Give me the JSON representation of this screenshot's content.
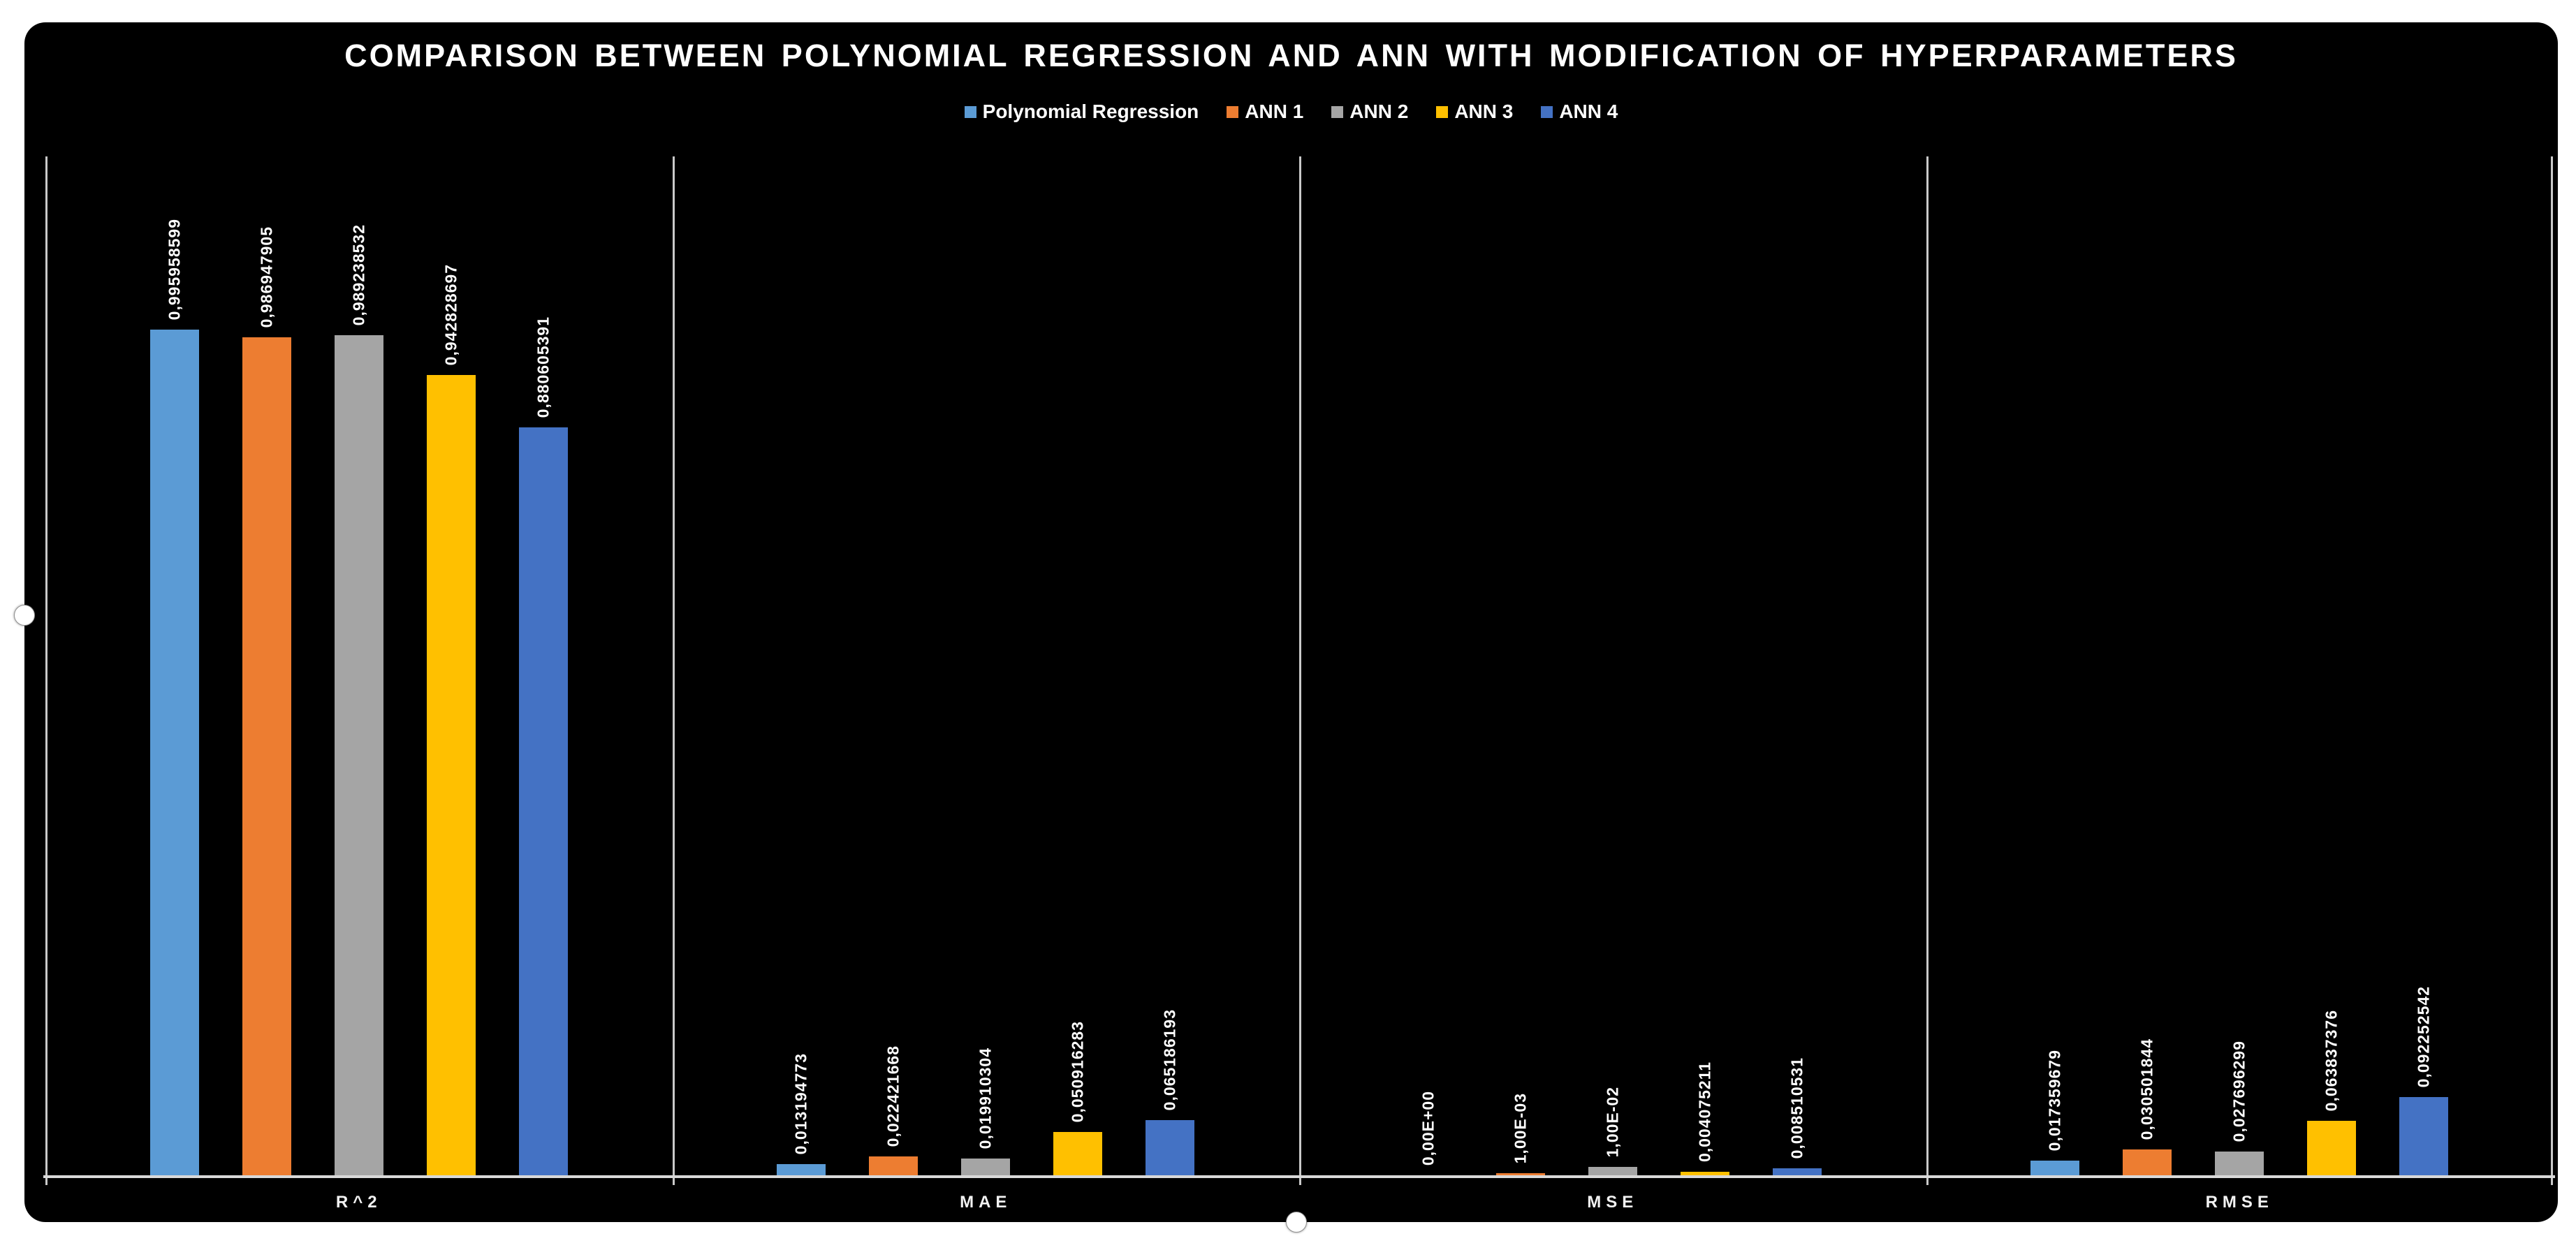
{
  "chart_data": {
    "type": "bar",
    "title": "COMPARISON BETWEEN POLYNOMIAL REGRESSION AND ANN WITH MODIFICATION OF HYPERPARAMETERS",
    "categories": [
      "R^2",
      "MAE",
      "MSE",
      "RMSE"
    ],
    "series": [
      {
        "name": "Polynomial Regression",
        "color": "#5B9BD5",
        "values": [
          0.995958599,
          0.013194773,
          0.0,
          0.017359679
        ],
        "labels": [
          "0,995958599",
          "0,013194773",
          "0,00E+00",
          "0,017359679"
        ]
      },
      {
        "name": "ANN 1",
        "color": "#ED7D31",
        "values": [
          0.986947905,
          0.022421668,
          0.001,
          0.030501844
        ],
        "labels": [
          "0,986947905",
          "0,022421668",
          "1,00E-03",
          "0,030501844"
        ]
      },
      {
        "name": "ANN 2",
        "color": "#A5A5A5",
        "values": [
          0.989238532,
          0.019910304,
          0.01,
          0.027696299
        ],
        "labels": [
          "0,989238532",
          "0,019910304",
          "1,00E-02",
          "0,027696299"
        ]
      },
      {
        "name": "ANN 3",
        "color": "#FFC000",
        "values": [
          0.942828697,
          0.050916283,
          0.004075211,
          0.063837376
        ],
        "labels": [
          "0,942828697",
          "0,050916283",
          "0,004075211",
          "0,063837376"
        ]
      },
      {
        "name": "ANN 4",
        "color": "#4472C4",
        "values": [
          0.880605391,
          0.065186193,
          0.008510531,
          0.092252542
        ],
        "labels": [
          "0,880605391",
          "0,065186193",
          "0,008510531",
          "0,092252542"
        ]
      }
    ],
    "ylim": [
      0,
      1.2
    ],
    "grid": false,
    "legend_position": "top",
    "background_color": "#000000",
    "axis_color": "#D9D9D9",
    "separator_color": "#C9C9C9",
    "data_label_color": "#FFFFFF"
  }
}
